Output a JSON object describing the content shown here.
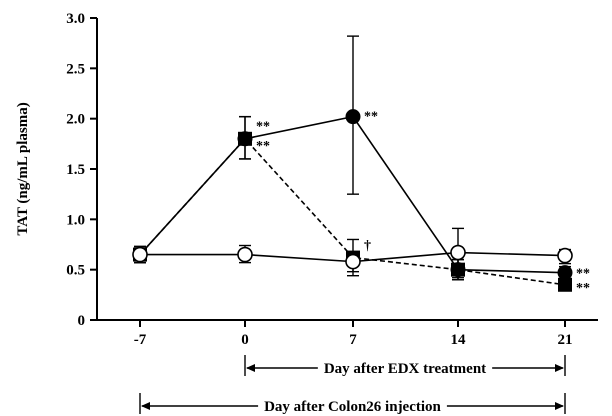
{
  "chart_data": {
    "type": "line",
    "ylabel": "TAT (ng/mL plasma)",
    "ylim": [
      0,
      3.0
    ],
    "yticks": [
      "0",
      "0.5",
      "1.0",
      "1.5",
      "2.0",
      "2.5",
      "3.0"
    ],
    "yticks_values": [
      0,
      0.5,
      1.0,
      1.5,
      2.0,
      2.5,
      3.0
    ],
    "x_categories": [
      "-7",
      "0",
      "7",
      "14",
      "21"
    ],
    "x_values": [
      -7,
      0,
      7,
      14,
      21
    ],
    "series": [
      {
        "marker": "open-circle",
        "line": "solid",
        "points": [
          {
            "x": -7,
            "y": 0.65,
            "err_hi": 0.73,
            "err_lo": 0.57
          },
          {
            "x": 0,
            "y": 0.65,
            "err_hi": 0.74,
            "err_lo": 0.57
          },
          {
            "x": 7,
            "y": 0.58,
            "err_hi": 0.67,
            "err_lo": 0.48
          },
          {
            "x": 14,
            "y": 0.67,
            "err_hi": 0.91,
            "err_lo": 0.42
          },
          {
            "x": 21,
            "y": 0.64,
            "err_hi": 0.7,
            "err_lo": 0.56
          }
        ]
      },
      {
        "marker": "filled-circle",
        "line": "solid",
        "points": [
          {
            "x": -7,
            "y": 0.65,
            "err_hi": 0.73,
            "err_lo": 0.57
          },
          {
            "x": 0,
            "y": 1.8,
            "err_hi": 2.02,
            "err_lo": 1.6
          },
          {
            "x": 7,
            "y": 2.02,
            "err_hi": 2.82,
            "err_lo": 1.25
          },
          {
            "x": 14,
            "y": 0.5,
            "err_hi": 0.6,
            "err_lo": 0.4
          },
          {
            "x": 21,
            "y": 0.47,
            "err_hi": 0.53,
            "err_lo": 0.4
          }
        ]
      },
      {
        "marker": "filled-square",
        "line": "dashed",
        "points": [
          {
            "x": -7,
            "y": 0.65,
            "err_hi": 0.73,
            "err_lo": 0.57
          },
          {
            "x": 0,
            "y": 1.8,
            "err_hi": 2.02,
            "err_lo": 1.6
          },
          {
            "x": 7,
            "y": 0.62,
            "err_hi": 0.8,
            "err_lo": 0.44
          },
          {
            "x": 14,
            "y": 0.5,
            "err_hi": 0.6,
            "err_lo": 0.4
          },
          {
            "x": 21,
            "y": 0.35,
            "err_hi": 0.4,
            "err_lo": 0.3
          }
        ]
      }
    ],
    "annotations": [
      {
        "text": "**",
        "x": 0,
        "y": 1.93
      },
      {
        "text": "**",
        "x": 0,
        "y": 1.74
      },
      {
        "text": "**",
        "x": 7,
        "y": 2.03
      },
      {
        "text": "†",
        "x": 7,
        "y": 0.75
      },
      {
        "text": "**",
        "x": 21,
        "y": 0.47
      },
      {
        "text": "**",
        "x": 21,
        "y": 0.33
      }
    ],
    "spans": [
      {
        "label": "Day after EDX treatment",
        "from": 0,
        "to": 21
      },
      {
        "label": "Day after Colon26 injection",
        "from": -7,
        "to": 21
      }
    ]
  }
}
